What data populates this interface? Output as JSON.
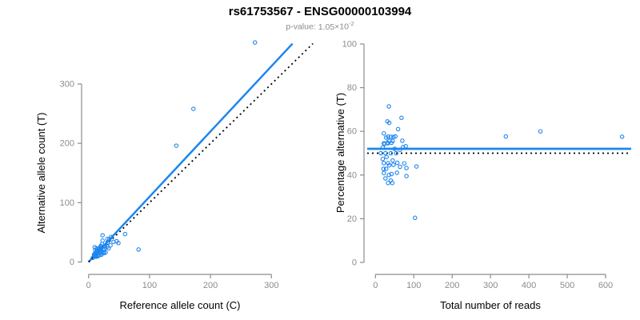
{
  "header": {
    "title": "rs61753567 - ENSG00000103994",
    "subtitle": {
      "label": "p-value:",
      "value": "1.05",
      "times": "×10",
      "exponent": "-2"
    }
  },
  "colors": {
    "accent_blue": "#1e86ee",
    "dotted_black": "#000000",
    "axis_gray": "#8c8c8c",
    "tick_label_gray": "#8c8c8c",
    "text_black": "#000000",
    "subtitle_gray": "#8c8c8c",
    "background": "#ffffff"
  },
  "samples": {
    "columns": [
      "ref_count",
      "alt_count"
    ],
    "rows": [
      [
        10,
        25
      ],
      [
        23,
        45
      ],
      [
        11,
        20
      ],
      [
        13,
        23
      ],
      [
        23,
        36
      ],
      [
        31,
        39
      ],
      [
        9,
        13
      ],
      [
        14,
        19
      ],
      [
        12,
        16
      ],
      [
        17,
        23
      ],
      [
        20,
        27
      ],
      [
        16,
        20
      ],
      [
        20,
        25
      ],
      [
        22,
        30
      ],
      [
        11,
        13
      ],
      [
        14,
        17
      ],
      [
        19,
        23
      ],
      [
        10,
        12
      ],
      [
        15,
        18
      ],
      [
        34,
        38
      ],
      [
        37,
        42
      ],
      [
        9,
        10
      ],
      [
        24,
        26
      ],
      [
        31,
        33
      ],
      [
        7,
        7
      ],
      [
        13,
        13
      ],
      [
        20,
        20
      ],
      [
        27,
        27
      ],
      [
        10,
        9
      ],
      [
        15,
        14
      ],
      [
        24,
        21
      ],
      [
        31,
        26
      ],
      [
        41,
        34
      ],
      [
        12,
        10
      ],
      [
        18,
        15
      ],
      [
        26,
        21
      ],
      [
        12,
        9
      ],
      [
        20,
        16
      ],
      [
        36,
        28
      ],
      [
        46,
        35
      ],
      [
        60,
        47
      ],
      [
        16,
        12
      ],
      [
        25,
        17
      ],
      [
        33,
        23
      ],
      [
        13,
        9
      ],
      [
        21,
        14
      ],
      [
        49,
        32
      ],
      [
        16,
        10
      ],
      [
        25,
        15
      ],
      [
        21,
        12
      ],
      [
        28,
        16
      ],
      [
        82,
        21
      ],
      [
        144,
        196
      ],
      [
        172,
        258
      ],
      [
        273,
        370
      ]
    ]
  },
  "chart_data": [
    {
      "type": "scatter",
      "panel": "left",
      "xlabel": "Reference allele count (C)",
      "ylabel": "Alternative allele count (T)",
      "x_ticks": [
        0,
        100,
        200,
        300
      ],
      "y_ticks": [
        0,
        100,
        200,
        300
      ],
      "xlim": [
        0,
        368
      ],
      "ylim": [
        0,
        368
      ],
      "points": "ref_alt",
      "lines": [
        {
          "name": "regression-line",
          "slope": 1.1,
          "intercept": 0,
          "style": "solid",
          "color": "#1e86ee"
        },
        {
          "name": "identity-line",
          "slope": 1.0,
          "intercept": 0,
          "style": "dotted",
          "color": "#000000"
        }
      ]
    },
    {
      "type": "scatter",
      "panel": "right",
      "xlabel": "Total number of reads",
      "ylabel": "Percentage alternative (T)",
      "x_ticks": [
        0,
        100,
        200,
        300,
        400,
        500,
        600
      ],
      "y_ticks": [
        0,
        20,
        40,
        60,
        80,
        100
      ],
      "xlim": [
        0,
        650
      ],
      "ylim": [
        0,
        100
      ],
      "points": "total_pct",
      "hlines": [
        {
          "name": "mean-percentage-line",
          "value": 52,
          "style": "solid",
          "color": "#1e86ee"
        },
        {
          "name": "null-50-percent-line",
          "value": 50,
          "style": "dotted",
          "color": "#000000"
        }
      ]
    }
  ]
}
